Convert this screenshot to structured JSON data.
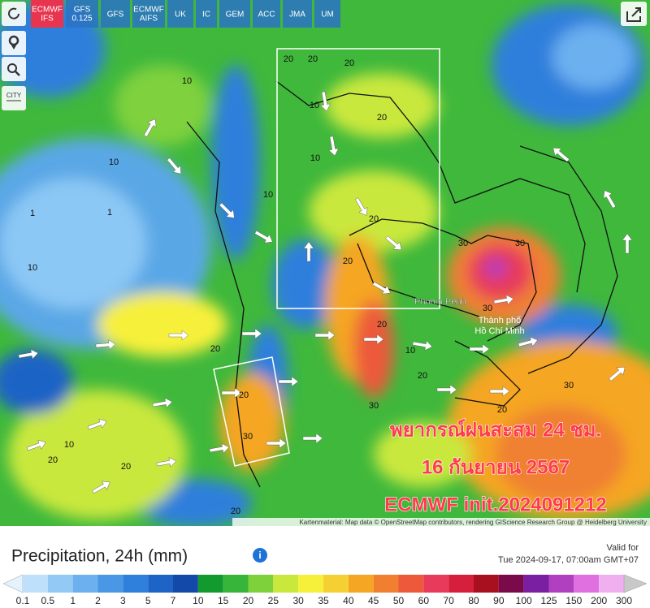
{
  "toolbar": {
    "models": [
      {
        "lines": [
          "ECMWF",
          "IFS"
        ],
        "active": true
      },
      {
        "lines": [
          "GFS",
          "0.125"
        ],
        "active": false
      },
      {
        "lines": [
          "GFS"
        ],
        "active": false
      },
      {
        "lines": [
          "ECMWF",
          "AIFS"
        ],
        "active": false
      },
      {
        "lines": [
          "UK"
        ],
        "active": false
      },
      {
        "lines": [
          "IC"
        ],
        "active": false
      },
      {
        "lines": [
          "GEM"
        ],
        "active": false
      },
      {
        "lines": [
          "ACC"
        ],
        "active": false
      },
      {
        "lines": [
          "JMA"
        ],
        "active": false
      },
      {
        "lines": [
          "UM"
        ],
        "active": false
      }
    ]
  },
  "sidebar": {
    "city": "CITY"
  },
  "map": {
    "overlay_lines": [
      "พยากรณ์ฝนสะสม 24 ชม.",
      "16 กันยายน 2567",
      "ECMWF init.2024091212"
    ],
    "places": [
      "Phnom Penh",
      "Thành phố",
      "Hồ Chí Minh"
    ],
    "attribution": "Kartenmaterial: Map data © OpenStreetMap contributors, rendering GIScience Research Group @ Heidelberg University",
    "contour_labels": [
      "20",
      "20",
      "20",
      "10",
      "10",
      "10",
      "20",
      "10",
      "1",
      "1",
      "10",
      "20",
      "30",
      "30",
      "20",
      "30",
      "20",
      "10",
      "20",
      "20",
      "30",
      "20",
      "30",
      "20",
      "10",
      "20",
      "20",
      "20",
      "30",
      "10"
    ]
  },
  "legend": {
    "title": "Precipitation, 24h (mm)",
    "valid_label": "Valid for",
    "valid_time": "Tue 2024-09-17, 07:00am GMT+07",
    "ticks": [
      0.1,
      0.5,
      1,
      2,
      3,
      5,
      7,
      10,
      15,
      20,
      25,
      30,
      35,
      40,
      45,
      50,
      60,
      70,
      80,
      90,
      100,
      125,
      150,
      200,
      300
    ],
    "colors": [
      "#bfe0fb",
      "#93c9f5",
      "#6cb0ef",
      "#4a97e6",
      "#2f7fdc",
      "#1e63c6",
      "#1349a8",
      "#139a2f",
      "#36b53a",
      "#7fd13c",
      "#c9e83c",
      "#f7f03a",
      "#f5d032",
      "#f5a623",
      "#f08030",
      "#ec5a3b",
      "#e83a5a",
      "#d61f3c",
      "#a8101f",
      "#7a0a4a",
      "#7b1fa2",
      "#b040c0",
      "#e070e0",
      "#f0b0f0"
    ],
    "under_color": "#e4f2fd",
    "over_color": "#c8c8c8"
  }
}
